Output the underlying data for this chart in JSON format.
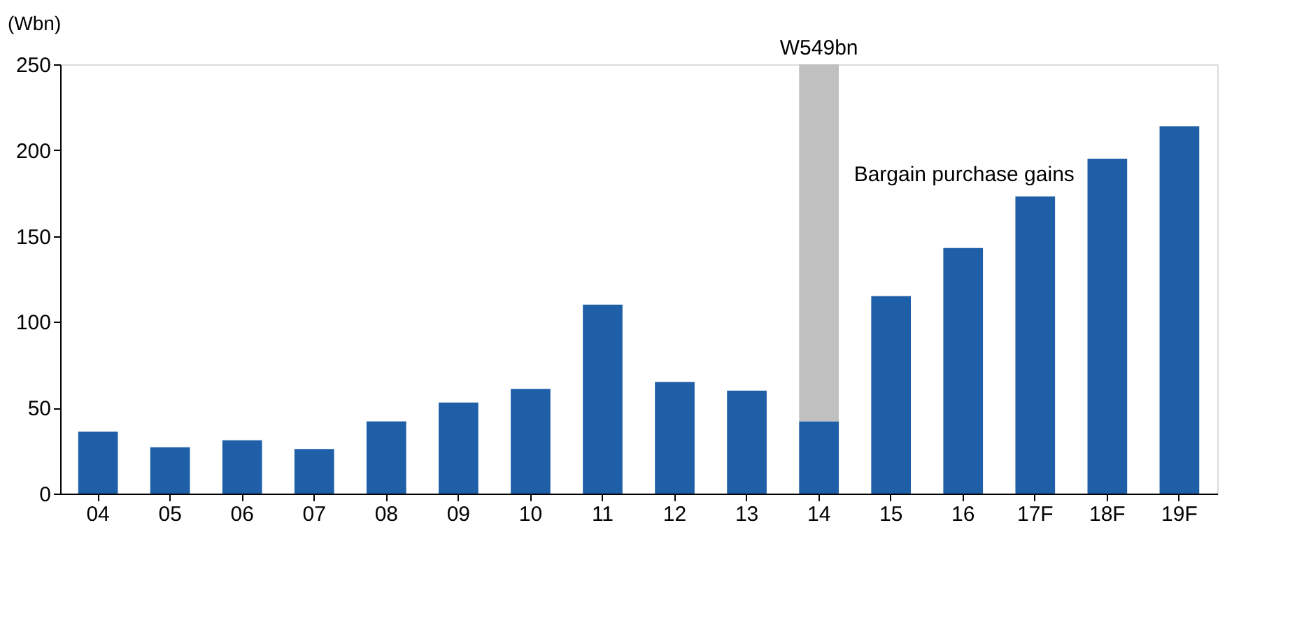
{
  "chart_data": {
    "type": "bar",
    "stacked": true,
    "ylabel": "(Wbn)",
    "categories": [
      "04",
      "05",
      "06",
      "07",
      "08",
      "09",
      "10",
      "11",
      "12",
      "13",
      "14",
      "15",
      "16",
      "17F",
      "18F",
      "19F"
    ],
    "series": [
      {
        "color": "#1f5fa8",
        "values": [
          36,
          27,
          31,
          26,
          42,
          53,
          61,
          110,
          65,
          60,
          42,
          115,
          143,
          173,
          195,
          214
        ]
      },
      {
        "name": "Bargain purchase gains",
        "color": "#c0c0c0",
        "values": [
          null,
          null,
          null,
          null,
          null,
          null,
          null,
          null,
          null,
          null,
          208,
          null,
          null,
          null,
          null,
          null
        ]
      }
    ],
    "annotations": [
      {
        "text": "W549bn",
        "x": "14",
        "y": 250
      }
    ],
    "ylim": [
      0,
      250
    ],
    "yticks": [
      0,
      50,
      100,
      150,
      200,
      250
    ],
    "grid": false,
    "legend": false
  }
}
